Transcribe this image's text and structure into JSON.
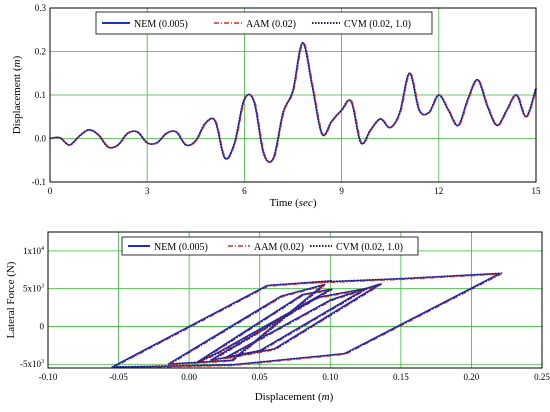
{
  "chart_data": [
    {
      "type": "line",
      "xlabel": "Time",
      "xlabel_unit": "sec",
      "ylabel": "Displacement",
      "ylabel_unit": "m",
      "xlim": [
        0,
        15
      ],
      "ylim": [
        -0.1,
        0.3
      ],
      "xticks": [
        "0",
        "3",
        "6",
        "9",
        "12",
        "15"
      ],
      "yticks": [
        "-0.1",
        "0.0",
        "0.1",
        "0.2",
        "0.3"
      ],
      "grid": true,
      "legend_position": "top",
      "series": [
        {
          "name": "NEM (0.005)",
          "color": "#1f2fbf",
          "dash": "solid"
        },
        {
          "name": "AAM (0.02)",
          "color": "#c0392b",
          "dash": "dashdot"
        },
        {
          "name": "CVM (0.02, 1.0)",
          "color": "#1a1a80",
          "dash": "dotted"
        }
      ],
      "x": [
        0,
        0.3,
        0.6,
        0.9,
        1.2,
        1.5,
        1.8,
        2.1,
        2.4,
        2.7,
        3.0,
        3.3,
        3.6,
        3.9,
        4.2,
        4.5,
        4.8,
        5.1,
        5.4,
        5.7,
        6.0,
        6.3,
        6.6,
        6.9,
        7.2,
        7.5,
        7.8,
        8.1,
        8.4,
        8.7,
        9.0,
        9.3,
        9.6,
        9.9,
        10.2,
        10.5,
        10.8,
        11.1,
        11.4,
        11.7,
        12.0,
        12.3,
        12.6,
        12.9,
        13.2,
        13.5,
        13.8,
        14.1,
        14.4,
        14.7,
        15.0
      ],
      "y": [
        0.0,
        0.002,
        -0.015,
        0.005,
        0.02,
        0.008,
        -0.02,
        -0.015,
        0.012,
        0.015,
        -0.01,
        -0.01,
        0.012,
        0.015,
        -0.015,
        -0.005,
        0.035,
        0.04,
        -0.045,
        -0.01,
        0.09,
        0.085,
        -0.035,
        -0.045,
        0.06,
        0.11,
        0.22,
        0.12,
        0.01,
        0.04,
        0.065,
        0.085,
        -0.01,
        0.02,
        0.045,
        0.025,
        0.06,
        0.15,
        0.065,
        0.06,
        0.1,
        0.065,
        0.03,
        0.09,
        0.135,
        0.075,
        0.03,
        0.065,
        0.1,
        0.05,
        0.115
      ]
    },
    {
      "type": "line",
      "xlabel": "Displacement",
      "xlabel_unit": "m",
      "ylabel": "Lateral Force (N)",
      "xlim": [
        -0.1,
        0.25
      ],
      "ylim": [
        -5.5,
        12.5
      ],
      "xticks": [
        "-0.10",
        "-0.05",
        "0.00",
        "0.05",
        "0.10",
        "0.15",
        "0.20",
        "0.25"
      ],
      "yticks": [
        {
          "base": "-5x10",
          "exp": "3",
          "value": -5
        },
        {
          "base": "0",
          "exp": "",
          "value": 0
        },
        {
          "base": "5x10",
          "exp": "3",
          "value": 5
        },
        {
          "base": "1x10",
          "exp": "4",
          "value": 10
        }
      ],
      "grid": true,
      "legend_position": "top",
      "series": [
        {
          "name": "NEM  (0.005)",
          "color": "#1f2fbf",
          "dash": "solid"
        },
        {
          "name": "AAM (0.02)",
          "color": "#c0392b",
          "dash": "dashdot"
        },
        {
          "name": "CVM (0.02, 1.0)",
          "color": "#1a1a80",
          "dash": "dotted"
        }
      ],
      "loop_x": [
        -0.055,
        0.055,
        0.1,
        0.085,
        0.15,
        0.22,
        0.11,
        0.095,
        0.03,
        -0.055
      ],
      "loop_y": [
        -5.4,
        5.4,
        6.0,
        5.8,
        6.3,
        7.0,
        -3.6,
        -3.9,
        -5.1,
        -5.4
      ],
      "inner_loops": [
        {
          "x": [
            -0.015,
            0.065,
            0.095,
            0.03,
            -0.015
          ],
          "y": [
            -5.0,
            4.0,
            5.5,
            -4.5,
            -5.0
          ]
        },
        {
          "x": [
            0.005,
            0.08,
            0.1,
            0.02,
            0.005
          ],
          "y": [
            -4.8,
            4.2,
            4.9,
            -3.5,
            -4.8
          ]
        },
        {
          "x": [
            0.015,
            0.09,
            0.125,
            0.05,
            0.015
          ],
          "y": [
            -4.5,
            3.8,
            5.0,
            -3.2,
            -4.5
          ]
        },
        {
          "x": [
            0.025,
            0.1,
            0.135,
            0.06,
            0.025
          ],
          "y": [
            -4.2,
            3.5,
            5.6,
            -3.0,
            -4.2
          ]
        }
      ]
    }
  ]
}
